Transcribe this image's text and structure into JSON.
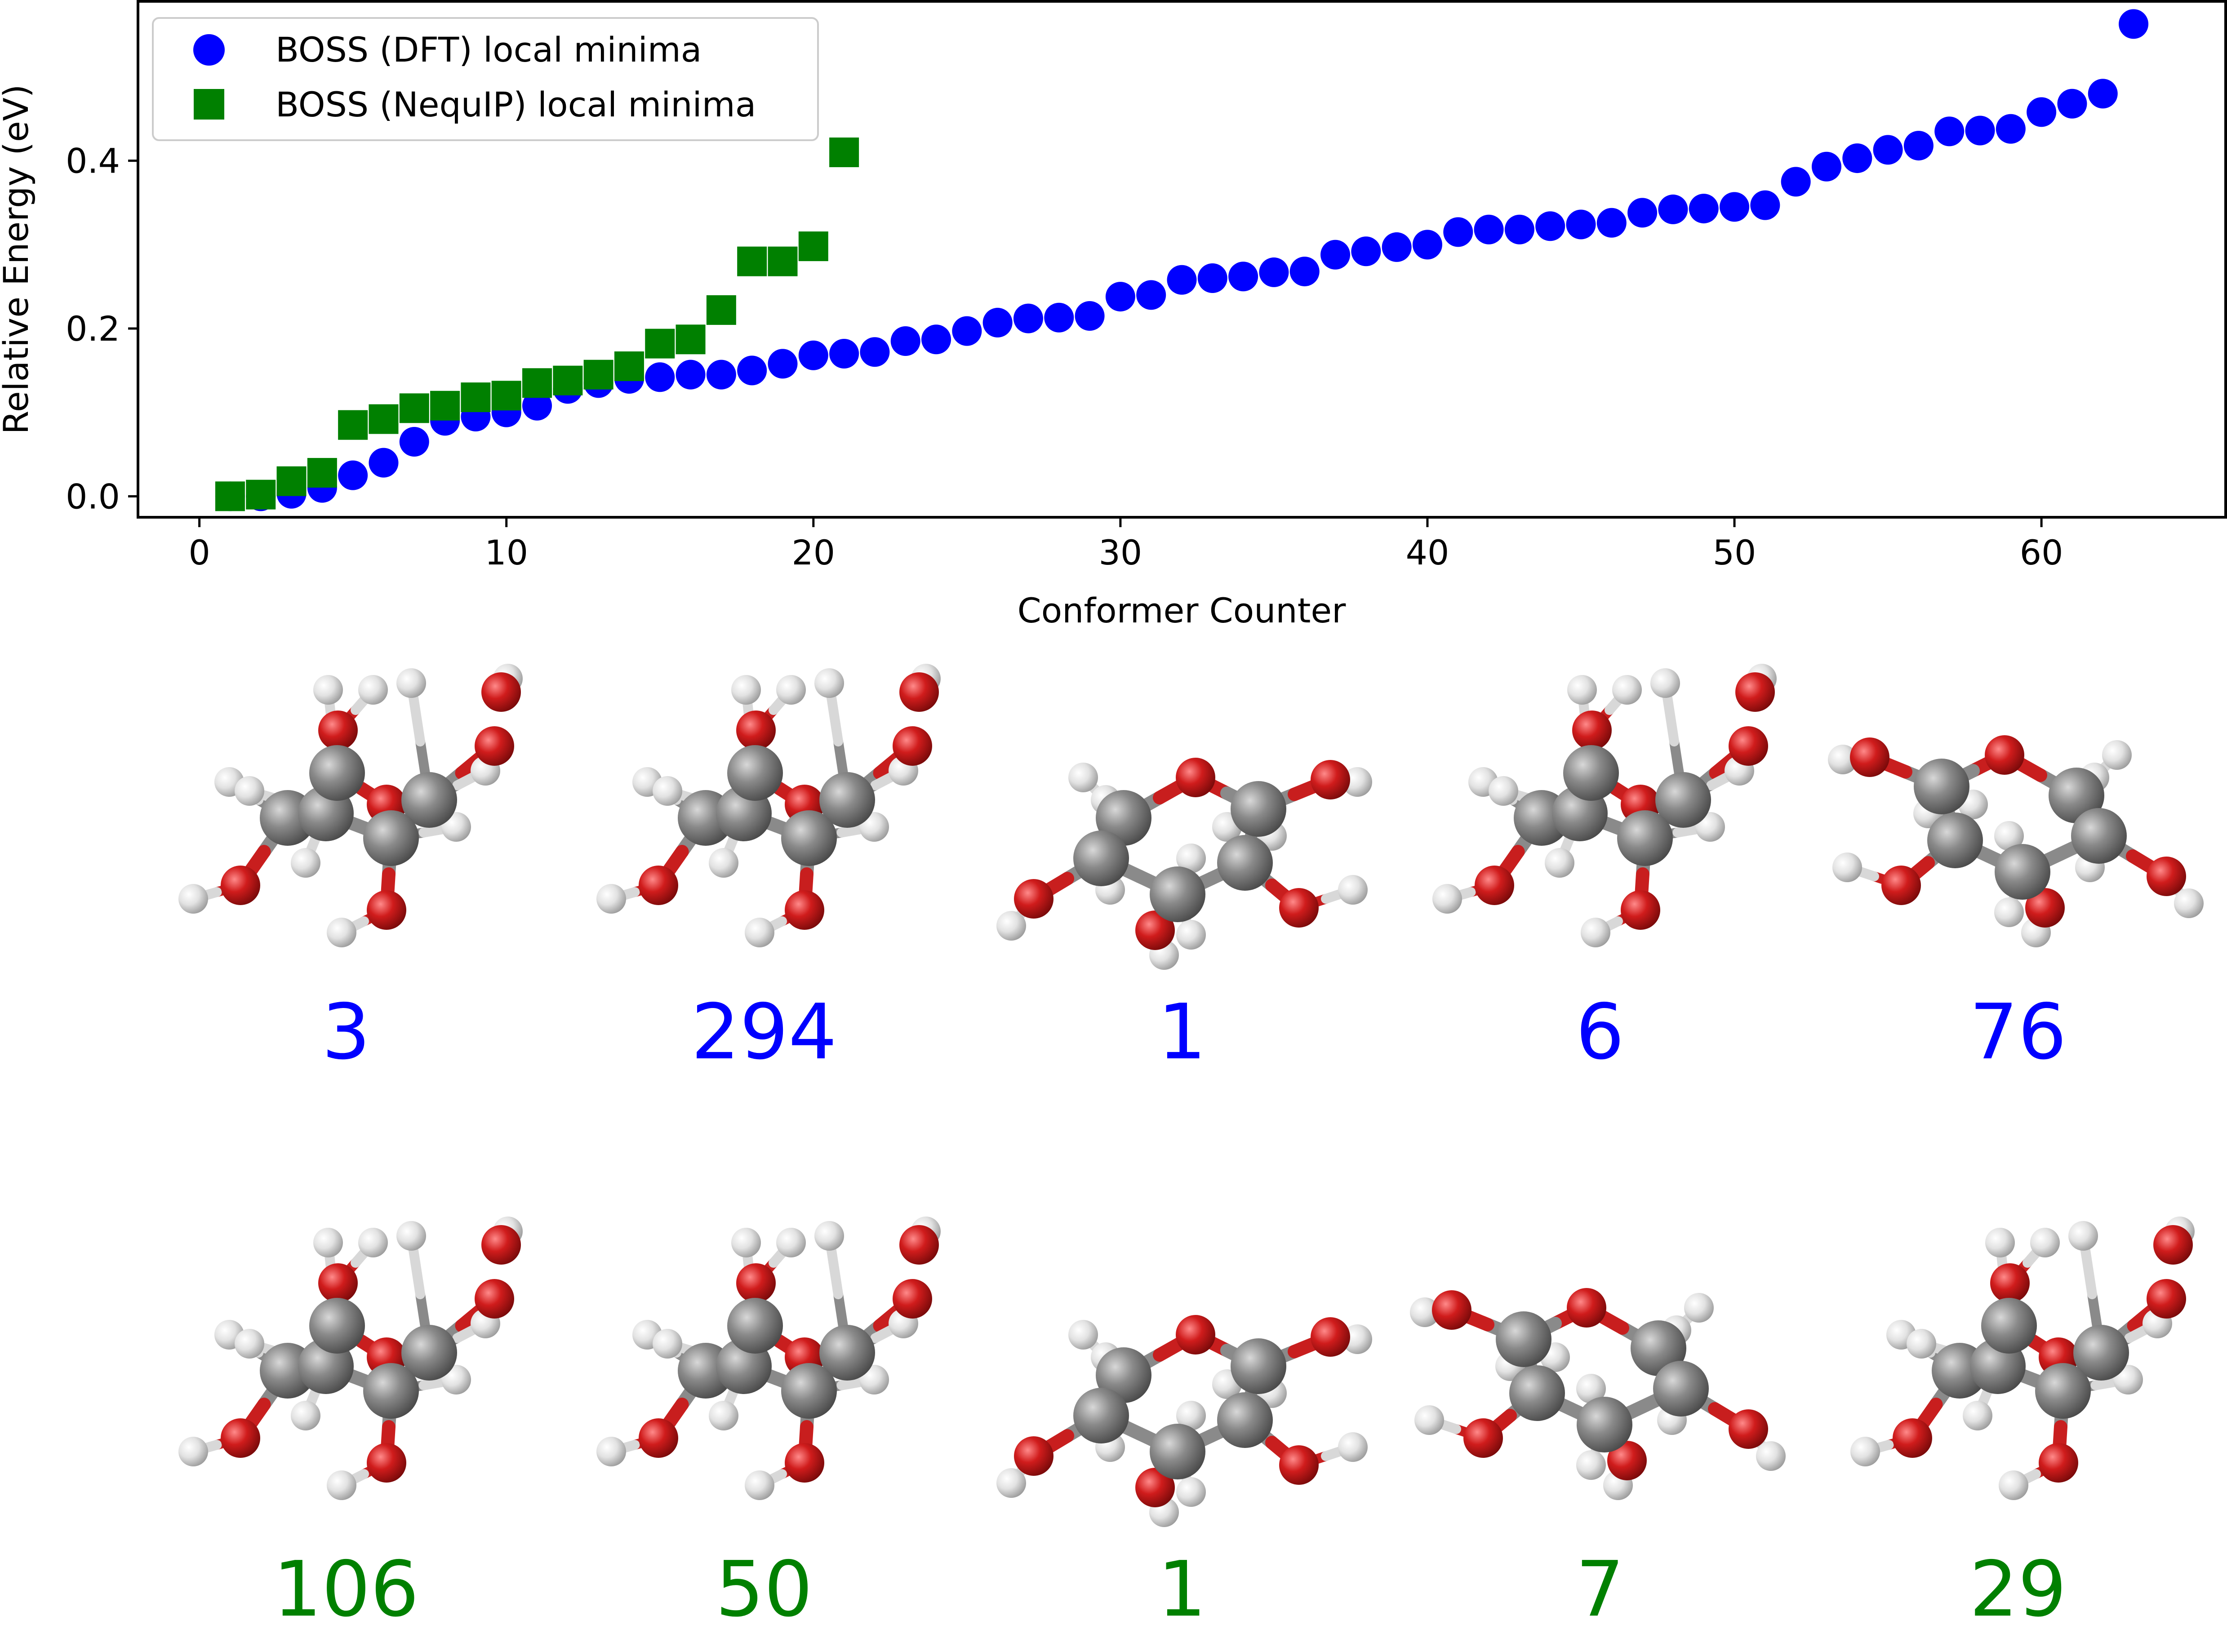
{
  "chart_data": {
    "type": "scatter",
    "xlabel": "Conformer Counter",
    "ylabel": "Relative Energy (eV)",
    "xlim": [
      -2,
      66
    ],
    "ylim": [
      -0.025,
      0.59
    ],
    "xticks": [
      0,
      10,
      20,
      30,
      40,
      50,
      60
    ],
    "yticks": [
      0.0,
      0.2,
      0.4
    ],
    "xtick_labels": [
      "0",
      "10",
      "20",
      "30",
      "40",
      "50",
      "60"
    ],
    "ytick_labels": [
      "0.0",
      "0.2",
      "0.4"
    ],
    "legend_position": "top-left",
    "grid": false,
    "series": [
      {
        "name": "BOSS (DFT) local minima",
        "marker": "circle",
        "color": "#0000ff",
        "x": [
          1,
          2,
          3,
          4,
          5,
          6,
          7,
          8,
          9,
          10,
          11,
          12,
          13,
          14,
          15,
          16,
          17,
          18,
          19,
          20,
          21,
          22,
          23,
          24,
          25,
          26,
          27,
          28,
          29,
          30,
          31,
          32,
          33,
          34,
          35,
          36,
          37,
          38,
          39,
          40,
          41,
          42,
          43,
          44,
          45,
          46,
          47,
          48,
          49,
          50,
          51,
          52,
          53,
          54,
          55,
          56,
          57,
          58,
          59,
          60,
          61,
          62,
          63
        ],
        "y": [
          0.0,
          0.0,
          0.003,
          0.01,
          0.025,
          0.04,
          0.065,
          0.09,
          0.095,
          0.1,
          0.108,
          0.128,
          0.135,
          0.14,
          0.142,
          0.145,
          0.145,
          0.15,
          0.158,
          0.168,
          0.17,
          0.172,
          0.185,
          0.187,
          0.197,
          0.207,
          0.212,
          0.213,
          0.215,
          0.238,
          0.24,
          0.258,
          0.26,
          0.262,
          0.267,
          0.268,
          0.288,
          0.292,
          0.297,
          0.3,
          0.315,
          0.318,
          0.318,
          0.322,
          0.324,
          0.326,
          0.338,
          0.342,
          0.343,
          0.345,
          0.347,
          0.375,
          0.393,
          0.403,
          0.413,
          0.418,
          0.435,
          0.436,
          0.438,
          0.458,
          0.468,
          0.48,
          0.563
        ]
      },
      {
        "name": "BOSS (NequIP) local minima",
        "marker": "square",
        "color": "#008000",
        "x": [
          1,
          2,
          3,
          4,
          5,
          6,
          7,
          8,
          9,
          10,
          11,
          12,
          13,
          14,
          15,
          16,
          17,
          18,
          19,
          20,
          21
        ],
        "y": [
          0.0,
          0.002,
          0.018,
          0.028,
          0.085,
          0.092,
          0.105,
          0.108,
          0.118,
          0.12,
          0.135,
          0.138,
          0.145,
          0.155,
          0.182,
          0.187,
          0.222,
          0.28,
          0.28,
          0.298,
          0.41
        ]
      }
    ]
  },
  "conformers": {
    "dft_row": {
      "color": "#0000ff",
      "labels": [
        "3",
        "294",
        "1",
        "6",
        "76"
      ]
    },
    "nequip_row": {
      "color": "#008000",
      "labels": [
        "106",
        "50",
        "1",
        "7",
        "29"
      ]
    }
  },
  "atom_colors": {
    "carbon": "#7f7f7f",
    "oxygen": "#cc1f1f",
    "hydrogen": "#dcdcdc"
  }
}
